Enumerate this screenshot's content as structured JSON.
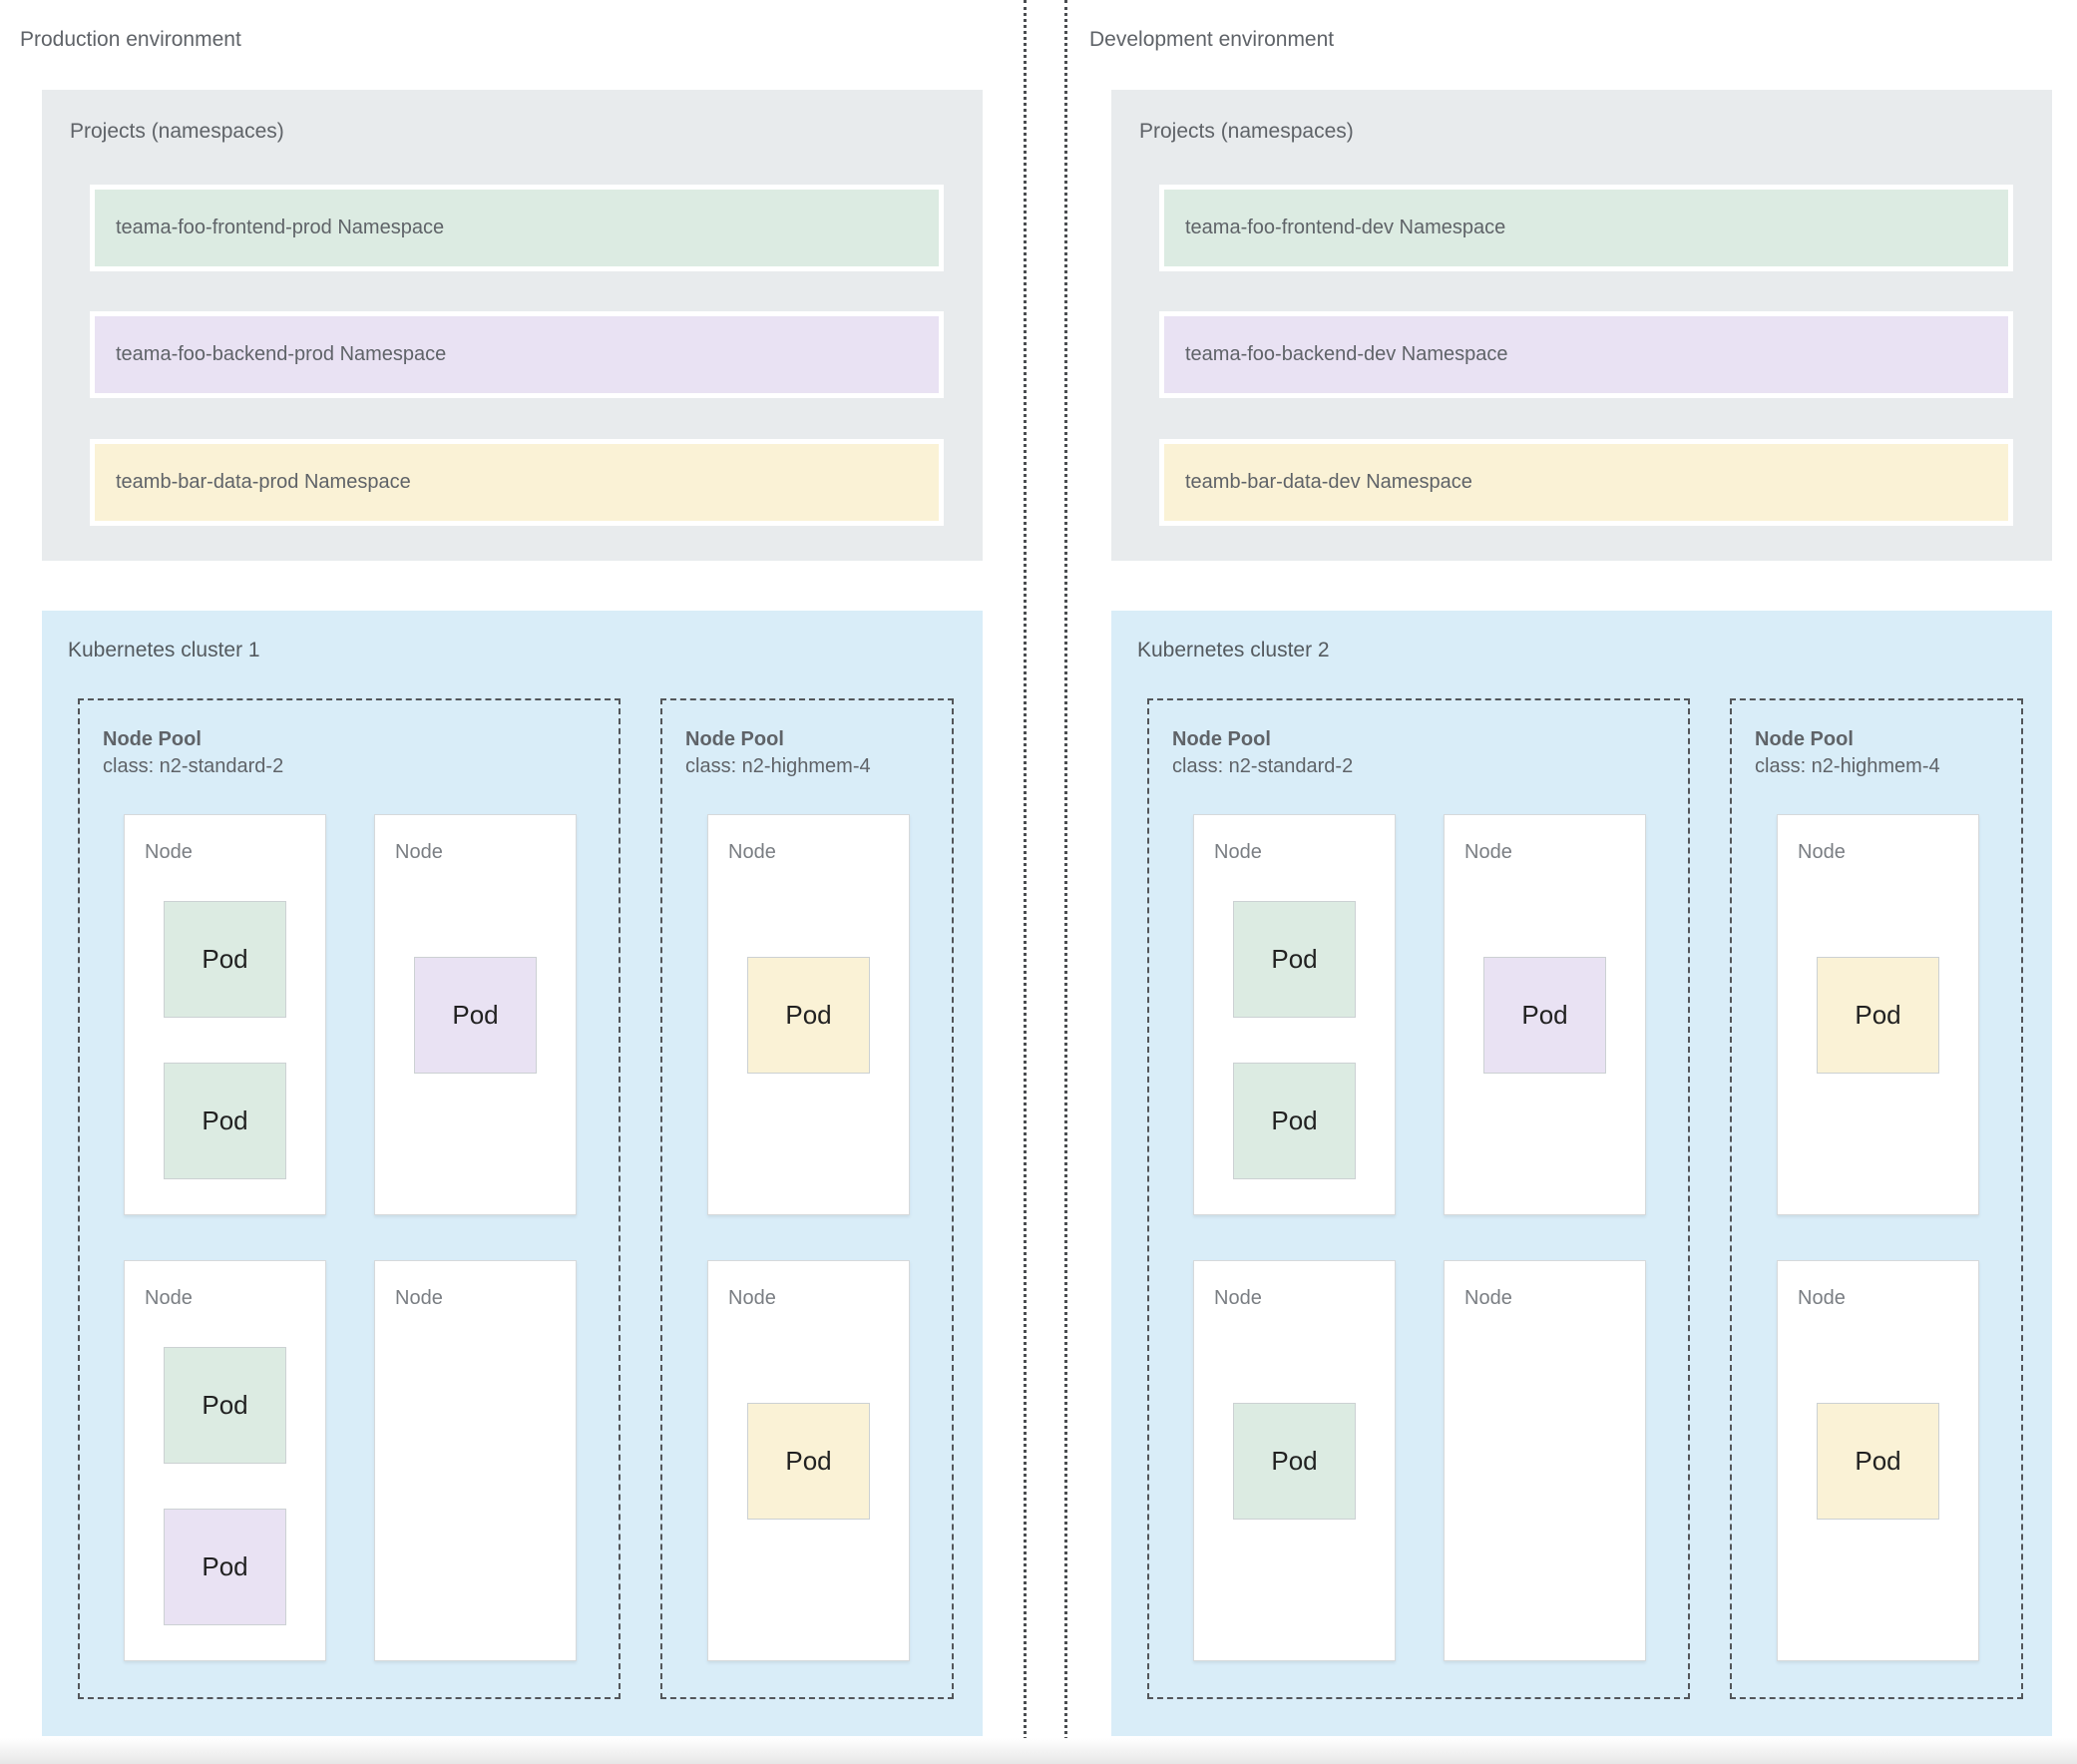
{
  "colors": {
    "page_bg": "#ffffff",
    "panel_gray": "#e8ebed",
    "cluster_blue": "#d9edf8",
    "green": "#dcebe2",
    "purple": "#e9e2f3",
    "yellow": "#faf2d6",
    "node_bg": "#ffffff",
    "label_text": "#5f6368",
    "pod_text": "#212121",
    "dashed_border": "#53565a"
  },
  "environments": [
    {
      "title": "Production environment",
      "projects": {
        "title": "Projects (namespaces)",
        "namespaces": [
          {
            "label": "teama-foo-frontend-prod Namespace",
            "color": "green"
          },
          {
            "label": "teama-foo-backend-prod Namespace",
            "color": "purple"
          },
          {
            "label": "teamb-bar-data-prod Namespace",
            "color": "yellow"
          }
        ]
      },
      "cluster": {
        "title": "Kubernetes cluster 1",
        "node_pools": [
          {
            "title": "Node Pool",
            "machine_class": "class: n2-standard-2",
            "nodes": [
              {
                "label": "Node",
                "pod_layout": "top",
                "pods": [
                  {
                    "label": "Pod",
                    "color": "green"
                  },
                  {
                    "label": "Pod",
                    "color": "green"
                  }
                ]
              },
              {
                "label": "Node",
                "pod_layout": "center",
                "pods": [
                  {
                    "label": "Pod",
                    "color": "purple"
                  }
                ]
              },
              {
                "label": "Node",
                "pod_layout": "top",
                "pods": [
                  {
                    "label": "Pod",
                    "color": "green"
                  },
                  {
                    "label": "Pod",
                    "color": "purple"
                  }
                ]
              },
              {
                "label": "Node",
                "pod_layout": "center",
                "pods": []
              }
            ]
          },
          {
            "title": "Node Pool",
            "machine_class": "class: n2-highmem-4",
            "nodes": [
              {
                "label": "Node",
                "pod_layout": "center",
                "pods": [
                  {
                    "label": "Pod",
                    "color": "yellow"
                  }
                ]
              },
              {
                "label": "Node",
                "pod_layout": "center",
                "pods": [
                  {
                    "label": "Pod",
                    "color": "yellow"
                  }
                ]
              }
            ]
          }
        ]
      }
    },
    {
      "title": "Development environment",
      "projects": {
        "title": "Projects (namespaces)",
        "namespaces": [
          {
            "label": "teama-foo-frontend-dev Namespace",
            "color": "green"
          },
          {
            "label": "teama-foo-backend-dev Namespace",
            "color": "purple"
          },
          {
            "label": "teamb-bar-data-dev Namespace",
            "color": "yellow"
          }
        ]
      },
      "cluster": {
        "title": "Kubernetes cluster 2",
        "node_pools": [
          {
            "title": "Node Pool",
            "machine_class": "class: n2-standard-2",
            "nodes": [
              {
                "label": "Node",
                "pod_layout": "top",
                "pods": [
                  {
                    "label": "Pod",
                    "color": "green"
                  },
                  {
                    "label": "Pod",
                    "color": "green"
                  }
                ]
              },
              {
                "label": "Node",
                "pod_layout": "center",
                "pods": [
                  {
                    "label": "Pod",
                    "color": "purple"
                  }
                ]
              },
              {
                "label": "Node",
                "pod_layout": "center",
                "pods": [
                  {
                    "label": "Pod",
                    "color": "green"
                  }
                ]
              },
              {
                "label": "Node",
                "pod_layout": "center",
                "pods": []
              }
            ]
          },
          {
            "title": "Node Pool",
            "machine_class": "class: n2-highmem-4",
            "nodes": [
              {
                "label": "Node",
                "pod_layout": "center",
                "pods": [
                  {
                    "label": "Pod",
                    "color": "yellow"
                  }
                ]
              },
              {
                "label": "Node",
                "pod_layout": "center",
                "pods": [
                  {
                    "label": "Pod",
                    "color": "yellow"
                  }
                ]
              }
            ]
          }
        ]
      }
    }
  ]
}
